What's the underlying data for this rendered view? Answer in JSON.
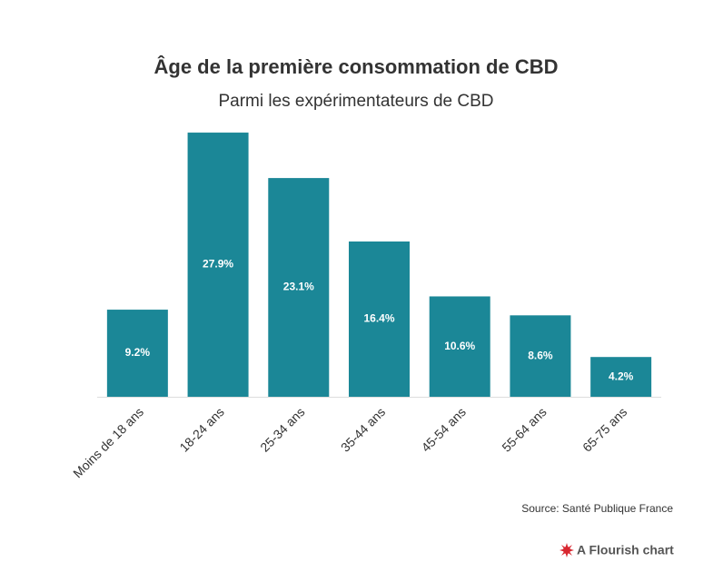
{
  "chart_data": {
    "type": "bar",
    "title": "Âge de la première consommation de CBD",
    "subtitle": "Parmi les expérimentateurs de CBD",
    "categories": [
      "Moins de 18 ans",
      "18-24 ans",
      "25-34 ans",
      "35-44 ans",
      "45-54 ans",
      "55-64 ans",
      "65-75 ans"
    ],
    "values": [
      9.2,
      27.9,
      23.1,
      16.4,
      10.6,
      8.6,
      4.2
    ],
    "value_labels": [
      "9.2%",
      "27.9%",
      "23.1%",
      "16.4%",
      "10.6%",
      "8.6%",
      "4.2%"
    ],
    "color": "#1b8797",
    "ylim": [
      0,
      28
    ],
    "source": "Source: Santé Publique France",
    "credit": "A Flourish chart"
  }
}
